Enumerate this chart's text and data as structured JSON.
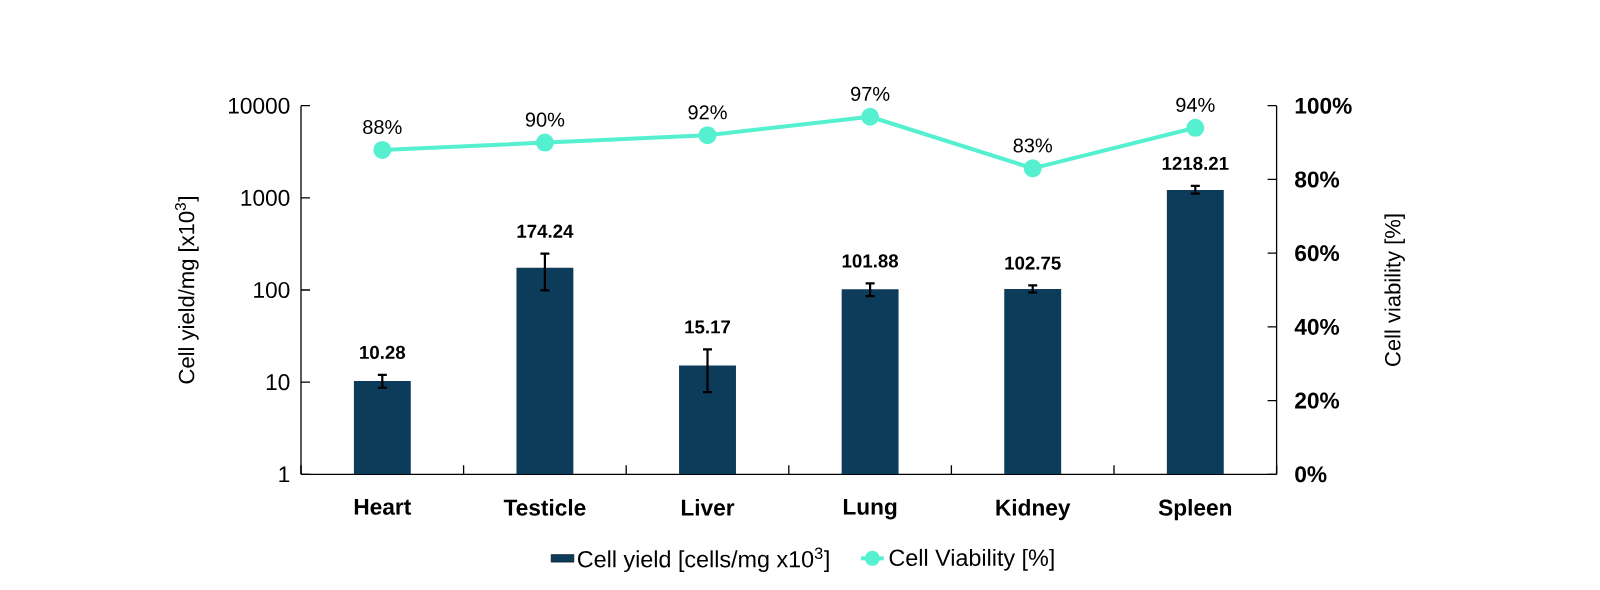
{
  "chart_data": {
    "type": "bar",
    "categories": [
      "Heart",
      "Testicle",
      "Liver",
      "Lung",
      "Kidney",
      "Spleen"
    ],
    "ylabel": "Cell yield/mg [x10$^{3}$]",
    "y2label": "Cell viability [%]",
    "series": [
      {
        "name": "Cell yield [cells/mg x10$^{3}$]",
        "color": "#0d3b5a",
        "values": [
          10.28,
          174.24,
          15.17,
          101.88,
          102.75,
          1218.21
        ],
        "value_labels": [
          "10.28",
          "174.24",
          "15.17",
          "101.88",
          "102.75",
          "1218.21"
        ],
        "errors": [
          [
            8.7,
            12.0
          ],
          [
            99,
            248
          ],
          [
            7.8,
            22.7
          ],
          [
            86,
            118
          ],
          [
            94,
            112
          ],
          [
            1110,
            1350
          ]
        ]
      },
      {
        "name": "Cell Viability [%]",
        "type": "line",
        "axis": "y2",
        "color": "#55f0d0",
        "marker": "circle",
        "line_style": "solid",
        "values": [
          88,
          90,
          92,
          97,
          83,
          94
        ],
        "value_labels": [
          "88%",
          "90%",
          "92%",
          "97%",
          "83%",
          "94%"
        ]
      }
    ],
    "log": "y",
    "ylim": [
      1,
      10000
    ],
    "yticks": [
      1,
      10,
      100,
      1000,
      10000
    ],
    "y2lim": [
      0,
      100
    ],
    "y2ticks": [
      {
        "value": 0,
        "label": "0%"
      },
      {
        "value": 20,
        "label": "20%"
      },
      {
        "value": 40,
        "label": "40%"
      },
      {
        "value": 60,
        "label": "60%"
      },
      {
        "value": 80,
        "label": "80%"
      },
      {
        "value": 100,
        "label": "100%"
      }
    ],
    "legend": "bottom"
  }
}
